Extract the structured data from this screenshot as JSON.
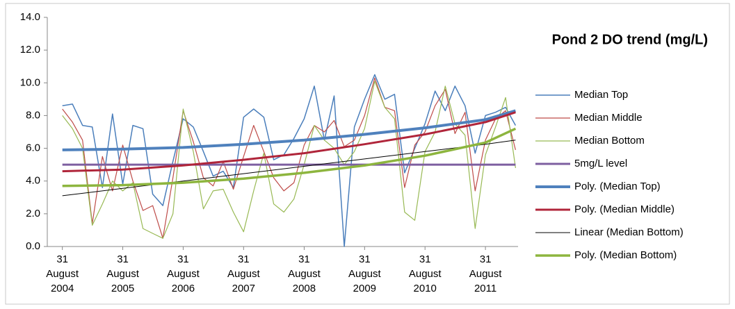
{
  "chart_data": {
    "type": "line",
    "title": "Pond 2 DO trend (mg/L)",
    "x": [
      "2004-08-31",
      "2004-10-31",
      "2004-12-31",
      "2005-02-28",
      "2005-04-30",
      "2005-06-30",
      "2005-08-31",
      "2005-10-31",
      "2005-12-31",
      "2006-02-28",
      "2006-04-30",
      "2006-06-30",
      "2006-08-31",
      "2006-10-31",
      "2006-12-31",
      "2007-02-28",
      "2007-04-30",
      "2007-06-30",
      "2007-08-31",
      "2007-10-31",
      "2007-12-31",
      "2008-02-29",
      "2008-04-30",
      "2008-06-30",
      "2008-08-31",
      "2008-10-31",
      "2008-12-31",
      "2009-02-28",
      "2009-04-30",
      "2009-06-30",
      "2009-08-31",
      "2009-10-31",
      "2009-12-31",
      "2010-02-28",
      "2010-04-30",
      "2010-06-30",
      "2010-08-31",
      "2010-10-31",
      "2010-12-31",
      "2011-02-28",
      "2011-04-30",
      "2011-06-30",
      "2011-08-31",
      "2011-10-31",
      "2011-12-31",
      "2012-02-29"
    ],
    "series": [
      {
        "name": "Median Top",
        "color": "#4a7ebb",
        "width": 1.5,
        "values": [
          8.6,
          8.7,
          7.4,
          7.3,
          3.6,
          8.1,
          3.8,
          7.4,
          7.2,
          3.2,
          2.5,
          5.2,
          7.8,
          7.3,
          5.8,
          4.3,
          4.6,
          3.6,
          7.9,
          8.4,
          7.9,
          5.3,
          5.6,
          6.6,
          7.8,
          9.8,
          6.5,
          9.2,
          0.0,
          7.3,
          9.0,
          10.5,
          9.0,
          9.3,
          4.5,
          6.0,
          7.5,
          9.5,
          8.3,
          9.8,
          8.6,
          5.7,
          8.0,
          8.2,
          8.5,
          7.4
        ]
      },
      {
        "name": "Median Middle",
        "color": "#be4b48",
        "width": 1.2,
        "values": [
          8.4,
          7.6,
          6.5,
          1.4,
          5.5,
          3.4,
          6.2,
          4.0,
          2.2,
          2.5,
          0.5,
          4.2,
          8.3,
          6.4,
          4.2,
          3.7,
          5.2,
          3.5,
          5.5,
          7.4,
          5.8,
          4.2,
          3.4,
          3.9,
          6.2,
          7.4,
          7.0,
          7.7,
          6.1,
          6.5,
          8.0,
          10.3,
          8.5,
          8.3,
          3.6,
          6.2,
          7.0,
          8.6,
          9.6,
          6.9,
          8.2,
          3.4,
          6.5,
          7.8,
          8.3,
          5.9
        ]
      },
      {
        "name": "Median Bottom",
        "color": "#98b954",
        "width": 1.2,
        "values": [
          8.0,
          7.2,
          6.0,
          1.3,
          2.6,
          4.0,
          3.4,
          3.9,
          1.1,
          0.8,
          0.5,
          2.0,
          8.4,
          5.8,
          2.3,
          3.4,
          3.5,
          2.1,
          0.9,
          3.4,
          5.7,
          2.6,
          2.1,
          2.9,
          5.0,
          7.4,
          6.5,
          6.0,
          5.0,
          5.8,
          7.2,
          10.1,
          8.5,
          7.8,
          2.1,
          1.6,
          5.8,
          7.0,
          9.8,
          7.5,
          6.8,
          1.1,
          5.6,
          7.3,
          9.1,
          4.8
        ]
      },
      {
        "name": "5mg/L level",
        "color": "#7d5fa0",
        "width": 3,
        "x": [
          "2004-08-31",
          "2012-02-29"
        ],
        "values": [
          5,
          5
        ]
      },
      {
        "name": "Poly. (Median Top)",
        "color": "#4f81bd",
        "width": 4,
        "x": [
          "2004-08-31",
          "2005-08-31",
          "2006-08-31",
          "2007-08-31",
          "2008-08-31",
          "2009-08-31",
          "2010-08-31",
          "2011-08-31",
          "2012-02-29"
        ],
        "values": [
          5.9,
          5.95,
          6.05,
          6.25,
          6.5,
          6.85,
          7.25,
          7.75,
          8.3
        ]
      },
      {
        "name": "Poly. (Median Middle)",
        "color": "#b0253a",
        "width": 3,
        "x": [
          "2004-08-31",
          "2005-08-31",
          "2006-08-31",
          "2007-08-31",
          "2008-08-31",
          "2009-08-31",
          "2010-08-31",
          "2011-08-31",
          "2012-02-29"
        ],
        "values": [
          4.6,
          4.7,
          4.95,
          5.3,
          5.7,
          6.25,
          6.85,
          7.6,
          8.2
        ]
      },
      {
        "name": "Linear (Median Bottom)",
        "color": "#000000",
        "width": 1,
        "x": [
          "2004-08-31",
          "2005-08-31",
          "2006-08-31",
          "2007-08-31",
          "2008-08-31",
          "2009-08-31",
          "2010-08-31",
          "2011-08-31",
          "2012-02-29"
        ],
        "values": [
          3.1,
          3.55,
          4.0,
          4.45,
          4.9,
          5.35,
          5.8,
          6.25,
          6.5
        ]
      },
      {
        "name": "Poly. (Median Bottom)",
        "color": "#8db53e",
        "width": 3.5,
        "x": [
          "2004-08-31",
          "2005-08-31",
          "2006-08-31",
          "2007-08-31",
          "2008-08-31",
          "2009-08-31",
          "2010-08-31",
          "2011-08-31",
          "2012-02-29"
        ],
        "values": [
          3.7,
          3.75,
          3.9,
          4.15,
          4.5,
          4.95,
          5.55,
          6.35,
          7.2
        ]
      }
    ],
    "xlim": [
      "2004-06-01",
      "2012-03-15"
    ],
    "xticks": [
      {
        "value": "2004-08-31",
        "label": "31 August 2004"
      },
      {
        "value": "2005-08-31",
        "label": "31 August 2005"
      },
      {
        "value": "2006-08-31",
        "label": "31 August 2006"
      },
      {
        "value": "2007-08-31",
        "label": "31 August 2007"
      },
      {
        "value": "2008-08-31",
        "label": "31 August 2008"
      },
      {
        "value": "2009-08-31",
        "label": "31 August 2009"
      },
      {
        "value": "2010-08-31",
        "label": "31 August 2010"
      },
      {
        "value": "2011-08-31",
        "label": "31 August 2011"
      }
    ],
    "ylim": [
      0,
      14
    ],
    "yticks": [
      {
        "value": 0,
        "label": "0.0"
      },
      {
        "value": 2,
        "label": "2.0"
      },
      {
        "value": 4,
        "label": "4.0"
      },
      {
        "value": 6,
        "label": "6.0"
      },
      {
        "value": 8,
        "label": "8.0"
      },
      {
        "value": 10,
        "label": "10.0"
      },
      {
        "value": 12,
        "label": "12.0"
      },
      {
        "value": 14,
        "label": "14.0"
      }
    ],
    "legend": "right"
  }
}
